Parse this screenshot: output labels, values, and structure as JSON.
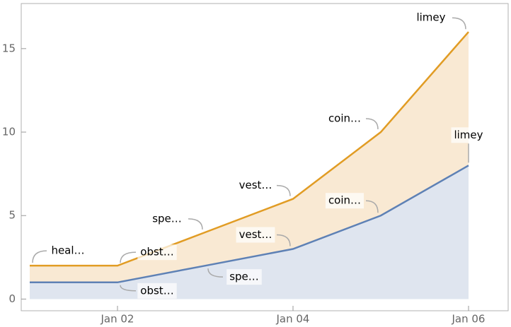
{
  "chart_data": {
    "type": "area",
    "x": [
      "Jan 01",
      "Jan 02",
      "Jan 03",
      "Jan 04",
      "Jan 05",
      "Jan 06"
    ],
    "xticks": [
      "Jan 02",
      "Jan 04",
      "Jan 06"
    ],
    "series": [
      {
        "color": "#e19c24",
        "fill": "#f9e9d3",
        "values": [
          2,
          2,
          4,
          6,
          10,
          16
        ],
        "labels": [
          "heal…",
          "obst…",
          "spe…",
          "vest…",
          "coin…",
          "limey"
        ]
      },
      {
        "color": "#5e81b5",
        "fill": "#dfe5ef",
        "values": [
          1,
          1,
          2,
          3,
          5,
          8
        ],
        "labels": [
          null,
          "obst…",
          "spe…",
          "vest…",
          "coin…",
          "limey"
        ]
      }
    ],
    "ylim": [
      -0.7,
      17.7
    ],
    "yticks": [
      0,
      5,
      10,
      15
    ]
  }
}
